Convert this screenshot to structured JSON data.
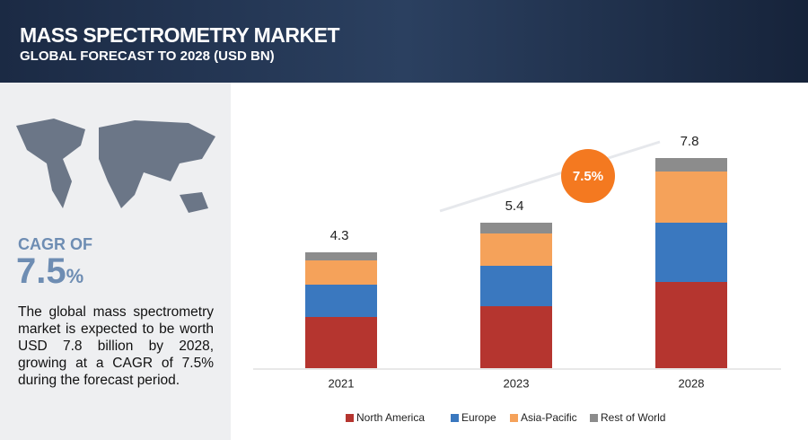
{
  "header": {
    "title": "MASS SPECTROMETRY MARKET",
    "subtitle": "GLOBAL FORECAST TO 2028 (USD BN)"
  },
  "side": {
    "cagr_label": "CAGR OF",
    "cagr_value": "7.5",
    "cagr_unit": "%",
    "description": "The global mass spectrometry market is expected to be worth USD 7.8 billion by 2028, growing at a CAGR of 7.5% during the forecast period."
  },
  "chart_data": {
    "type": "stacked_bar",
    "categories": [
      "2021",
      "2023",
      "2028"
    ],
    "series": [
      {
        "name": "North America",
        "color": "#b5352f",
        "values": [
          1.9,
          2.3,
          3.2
        ]
      },
      {
        "name": "Europe",
        "color": "#3a78bf",
        "values": [
          1.2,
          1.5,
          2.2
        ]
      },
      {
        "name": "Asia-Pacific",
        "color": "#f5a25a",
        "values": [
          0.9,
          1.2,
          1.9
        ]
      },
      {
        "name": "Rest of World",
        "color": "#8c8c8c",
        "values": [
          0.3,
          0.4,
          0.5
        ]
      }
    ],
    "totals": [
      4.3,
      5.4,
      7.8
    ],
    "annotation": "7.5%"
  }
}
